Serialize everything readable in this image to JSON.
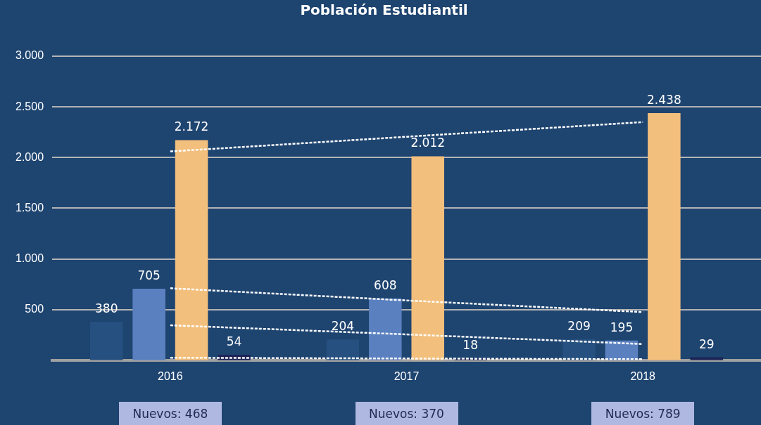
{
  "chart_data": {
    "type": "bar",
    "title": "Población Estudiantil",
    "categories": [
      "2016",
      "2017",
      "2018"
    ],
    "series": [
      {
        "color": "#26507f",
        "values": [
          380,
          204,
          209
        ],
        "value_labels": [
          "380",
          "204",
          "209"
        ]
      },
      {
        "color": "#5a80c0",
        "values": [
          705,
          608,
          195
        ],
        "value_labels": [
          "705",
          "608",
          "195"
        ]
      },
      {
        "color": "#f3bf7c",
        "values": [
          2172,
          2012,
          2438
        ],
        "value_labels": [
          "2.172",
          "2.012",
          "2.438"
        ]
      },
      {
        "color": "#1c2456",
        "values": [
          54,
          18,
          29
        ],
        "value_labels": [
          "54",
          "18",
          "29"
        ]
      },
      {
        "type": "line",
        "color": "#ffffff",
        "line_style": "dashed",
        "marker": "none",
        "values": [
          2060,
          2205,
          2350
        ]
      },
      {
        "type": "line",
        "color": "#ffffff",
        "line_style": "dashed",
        "marker": "none",
        "values": [
          710,
          590,
          475
        ]
      },
      {
        "type": "line",
        "color": "#ffffff",
        "line_style": "dashed",
        "marker": "none",
        "values": [
          345,
          255,
          160
        ]
      },
      {
        "type": "line",
        "color": "#ffffff",
        "line_style": "dashed",
        "marker": "none",
        "values": [
          25,
          17,
          10
        ]
      }
    ],
    "ylim": [
      0,
      3000
    ],
    "yticks": [
      {
        "value": 500,
        "label": "500"
      },
      {
        "value": 1000,
        "label": "1.000"
      },
      {
        "value": 1500,
        "label": "1.500"
      },
      {
        "value": 2000,
        "label": "2.000"
      },
      {
        "value": 2500,
        "label": "2.500"
      },
      {
        "value": 3000,
        "label": "3.000"
      }
    ],
    "grid": "y",
    "legend": false,
    "annotations": [
      "Nuevos: 468",
      "Nuevos: 370",
      "Nuevos: 789"
    ]
  }
}
